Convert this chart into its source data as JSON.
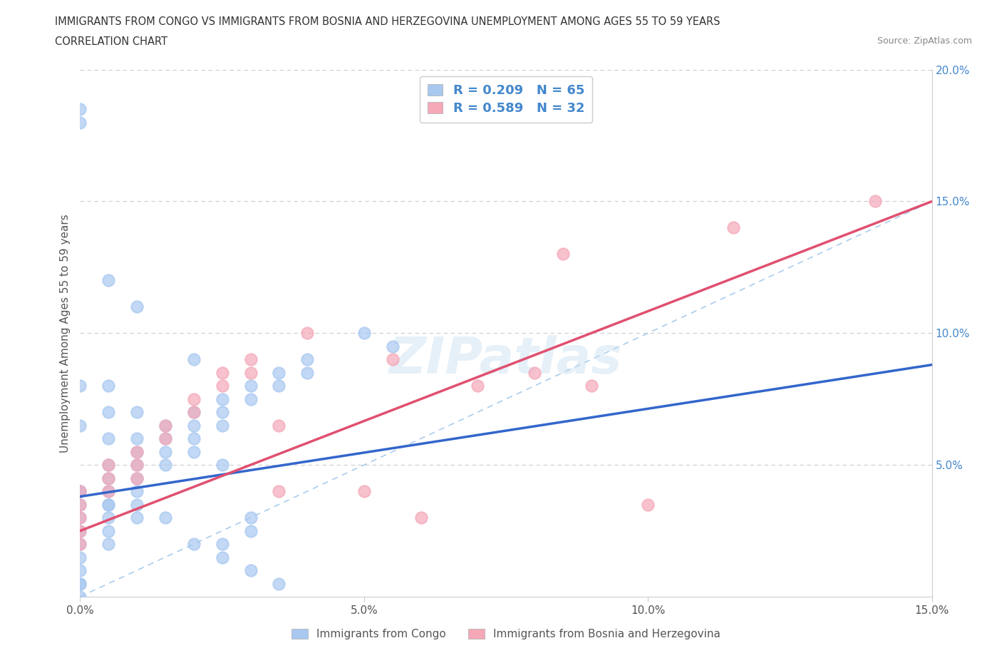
{
  "title_line1": "IMMIGRANTS FROM CONGO VS IMMIGRANTS FROM BOSNIA AND HERZEGOVINA UNEMPLOYMENT AMONG AGES 55 TO 59 YEARS",
  "title_line2": "CORRELATION CHART",
  "source_text": "Source: ZipAtlas.com",
  "ylabel": "Unemployment Among Ages 55 to 59 years",
  "xlim": [
    0.0,
    0.15
  ],
  "ylim": [
    0.0,
    0.2
  ],
  "xtick_labels": [
    "0.0%",
    "5.0%",
    "10.0%",
    "15.0%"
  ],
  "xtick_vals": [
    0.0,
    0.05,
    0.1,
    0.15
  ],
  "ytick_labels": [
    "5.0%",
    "10.0%",
    "15.0%",
    "20.0%"
  ],
  "ytick_vals": [
    0.05,
    0.1,
    0.15,
    0.2
  ],
  "congo_color": "#a8c8f0",
  "bosnia_color": "#f4a8b8",
  "congo_R": 0.209,
  "congo_N": 65,
  "bosnia_R": 0.589,
  "bosnia_N": 32,
  "legend_R_color": "#4488cc",
  "diag_color": "#aaccee",
  "congo_line_color": "#3366cc",
  "bosnia_line_color": "#e05070",
  "grid_color": "#cccccc",
  "congo_x": [
    0.0,
    0.0,
    0.0,
    0.0,
    0.0,
    0.0,
    0.0,
    0.0,
    0.0,
    0.0,
    0.005,
    0.005,
    0.005,
    0.005,
    0.005,
    0.005,
    0.005,
    0.01,
    0.01,
    0.01,
    0.01,
    0.01,
    0.015,
    0.015,
    0.015,
    0.015,
    0.02,
    0.02,
    0.02,
    0.025,
    0.025,
    0.025,
    0.03,
    0.03,
    0.035,
    0.035,
    0.04,
    0.04,
    0.05,
    0.055,
    0.01,
    0.02,
    0.03,
    0.005,
    0.0,
    0.0,
    0.0,
    0.005,
    0.01,
    0.015,
    0.02,
    0.025,
    0.005,
    0.03,
    0.035,
    0.01,
    0.0,
    0.005,
    0.02,
    0.025,
    0.0,
    0.005,
    0.01,
    0.03,
    0.025
  ],
  "congo_y": [
    0.04,
    0.035,
    0.03,
    0.025,
    0.02,
    0.015,
    0.01,
    0.005,
    0.005,
    0.0,
    0.05,
    0.045,
    0.04,
    0.035,
    0.03,
    0.025,
    0.02,
    0.055,
    0.05,
    0.045,
    0.04,
    0.035,
    0.065,
    0.06,
    0.055,
    0.05,
    0.07,
    0.065,
    0.06,
    0.075,
    0.07,
    0.065,
    0.08,
    0.075,
    0.085,
    0.08,
    0.09,
    0.085,
    0.1,
    0.095,
    0.11,
    0.09,
    0.03,
    0.12,
    0.08,
    0.185,
    0.18,
    0.07,
    0.06,
    0.03,
    0.02,
    0.015,
    0.08,
    0.01,
    0.005,
    0.07,
    0.065,
    0.06,
    0.055,
    0.05,
    0.04,
    0.035,
    0.03,
    0.025,
    0.02
  ],
  "bosnia_x": [
    0.0,
    0.0,
    0.0,
    0.0,
    0.0,
    0.005,
    0.005,
    0.005,
    0.01,
    0.01,
    0.01,
    0.015,
    0.015,
    0.02,
    0.02,
    0.025,
    0.025,
    0.03,
    0.03,
    0.035,
    0.035,
    0.04,
    0.05,
    0.055,
    0.06,
    0.07,
    0.08,
    0.085,
    0.09,
    0.1,
    0.115,
    0.14
  ],
  "bosnia_y": [
    0.04,
    0.035,
    0.03,
    0.025,
    0.02,
    0.05,
    0.045,
    0.04,
    0.055,
    0.05,
    0.045,
    0.065,
    0.06,
    0.075,
    0.07,
    0.085,
    0.08,
    0.09,
    0.085,
    0.065,
    0.04,
    0.1,
    0.04,
    0.09,
    0.03,
    0.08,
    0.085,
    0.13,
    0.08,
    0.035,
    0.14,
    0.15
  ],
  "congo_line": [
    [
      0.0,
      0.15
    ],
    [
      0.038,
      0.088
    ]
  ],
  "bosnia_line": [
    [
      0.0,
      0.15
    ],
    [
      0.025,
      0.15
    ]
  ]
}
